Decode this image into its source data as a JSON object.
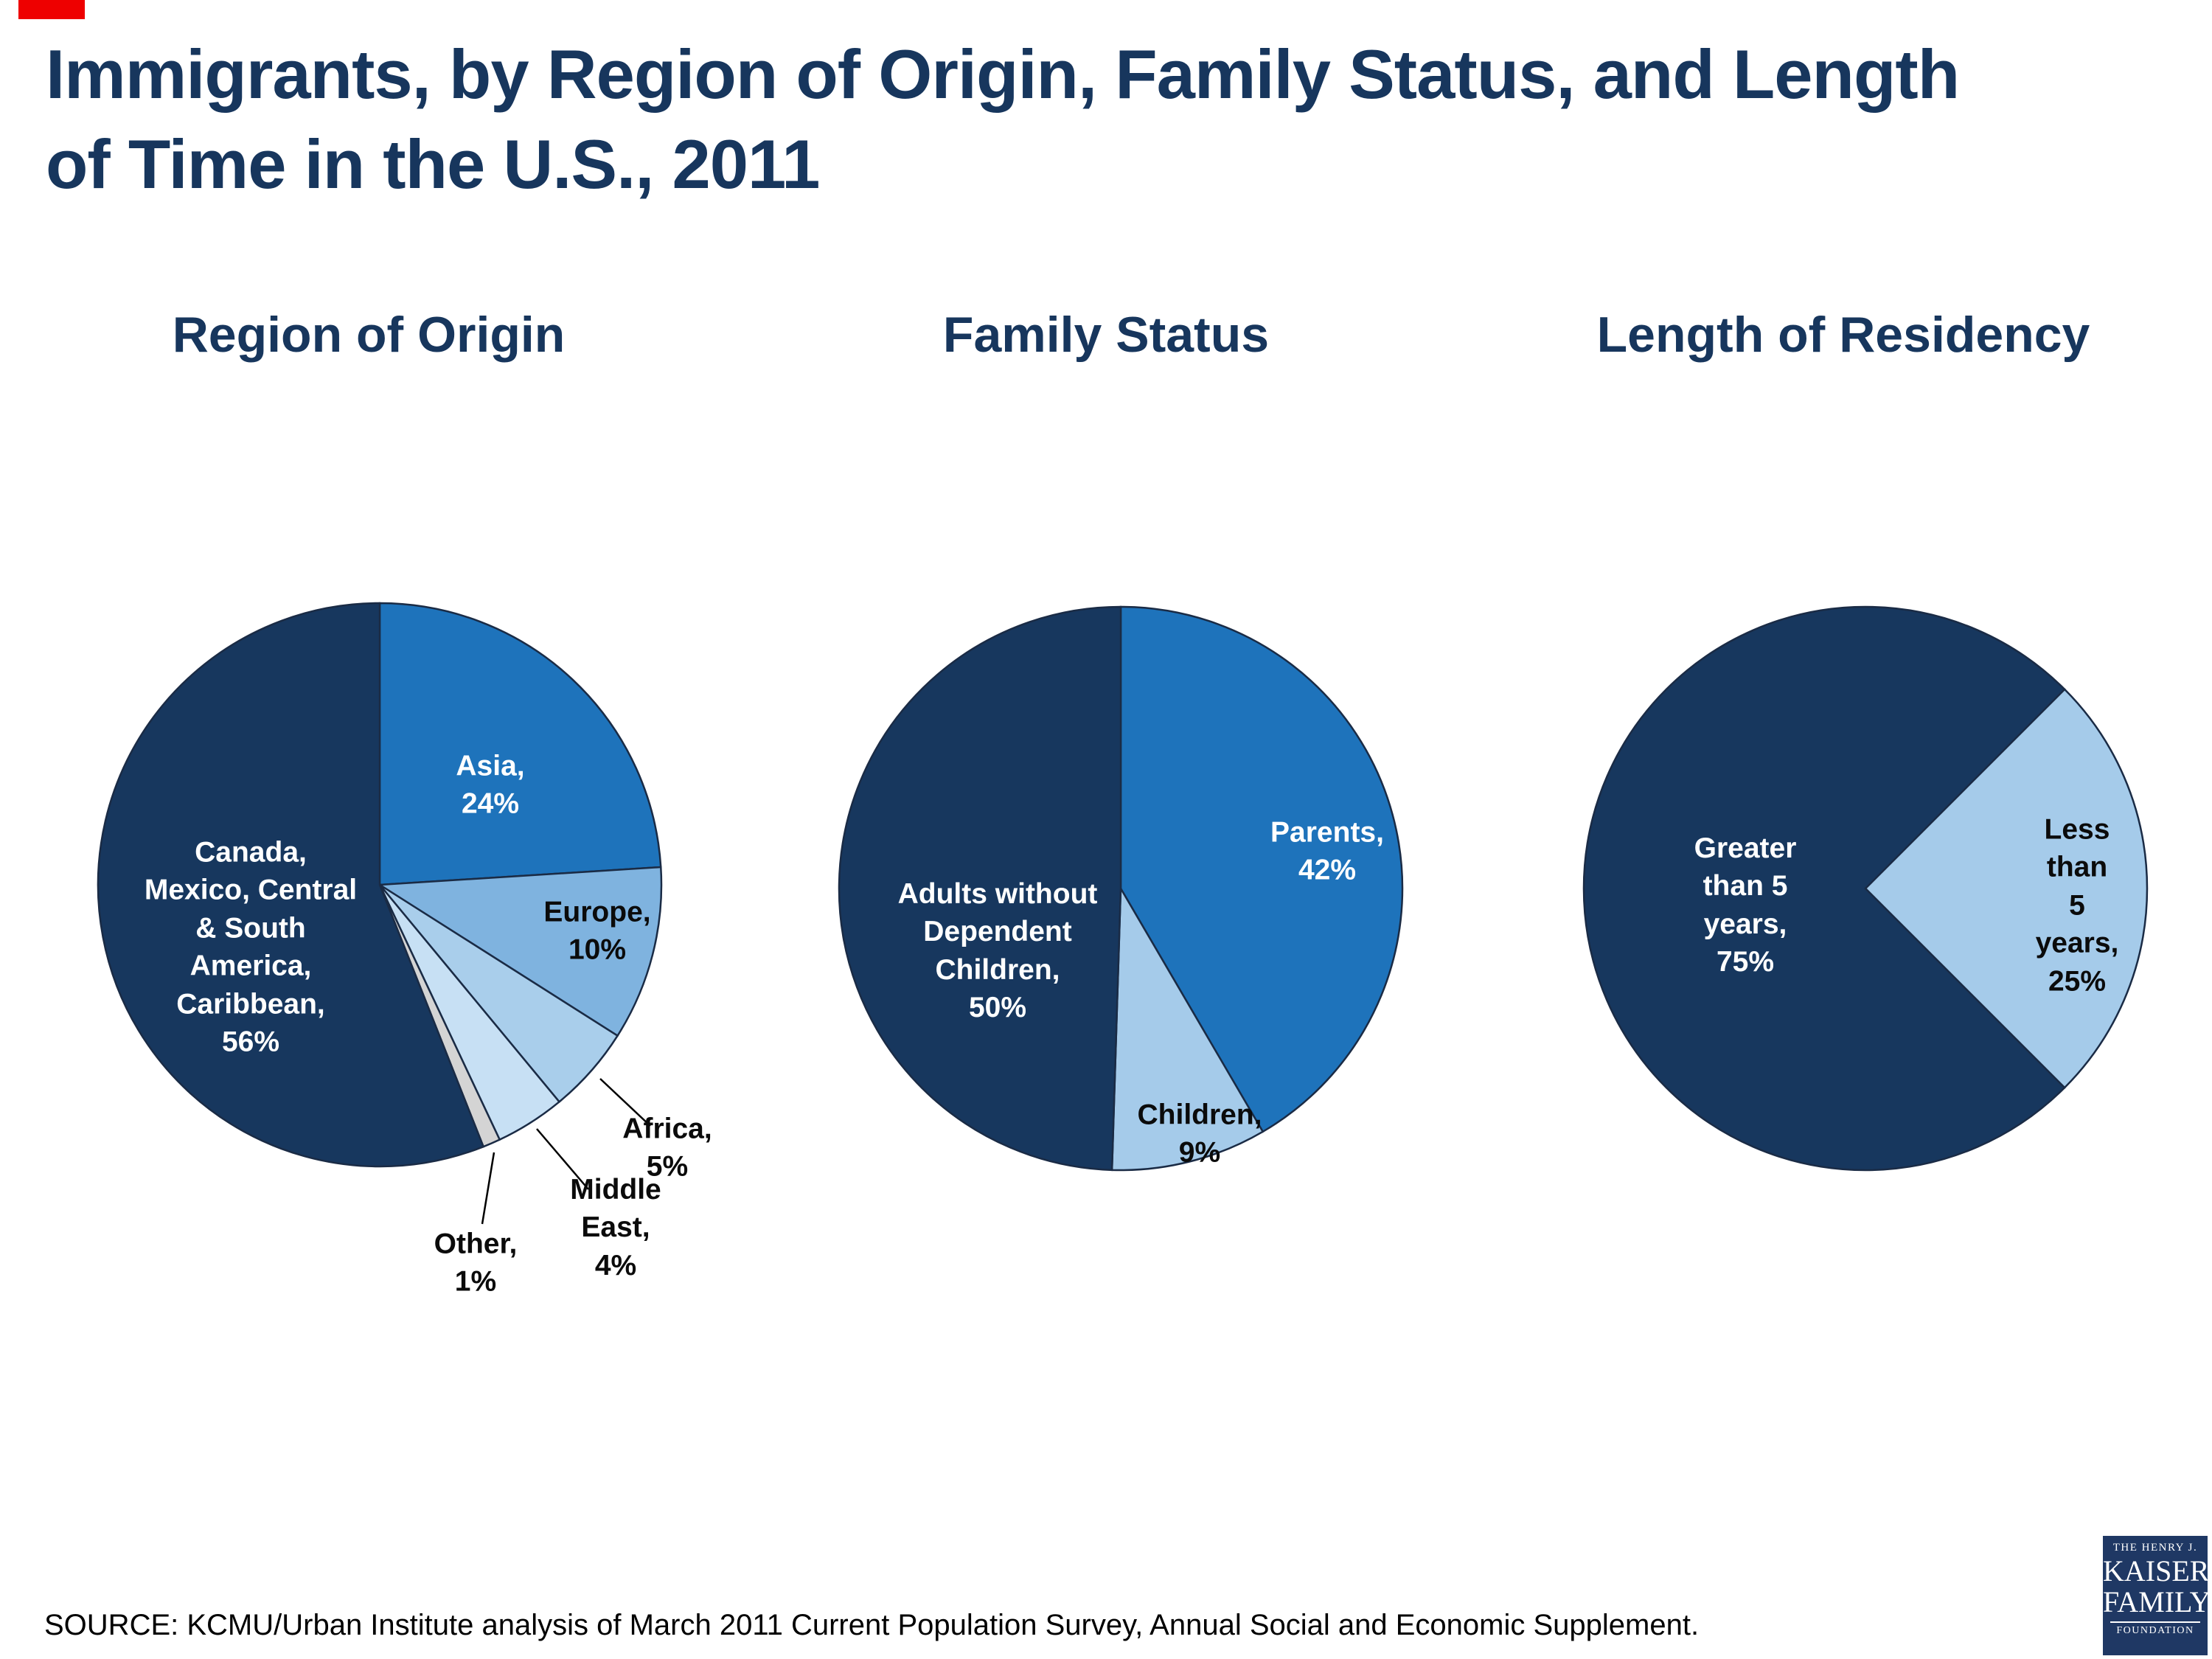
{
  "page": {
    "title": "Immigrants, by Region of Origin, Family Status, and Length\nof Time in the U.S., 2011",
    "source": "SOURCE: KCMU/Urban Institute analysis of March 2011 Current Population Survey, Annual Social and Economic Supplement."
  },
  "logo": {
    "line1": "THE HENRY J.",
    "line2": "KAISER",
    "line3": "FAMILY",
    "line4": "FOUNDATION"
  },
  "colors": {
    "navy": "#17375e",
    "medium_blue": "#1e73bb",
    "title_navy": "#17365d",
    "outline": "#1a2b45"
  },
  "chart_data": [
    {
      "type": "pie",
      "title": "Region of Origin",
      "start_angle_deg": 0,
      "legend": "none",
      "slices": [
        {
          "label": "Asia",
          "value": 24,
          "color": "#1e73bb"
        },
        {
          "label": "Europe",
          "value": 10,
          "color": "#7fb3df"
        },
        {
          "label": "Africa",
          "value": 5,
          "color": "#a9ceeb"
        },
        {
          "label": "Middle East",
          "value": 4,
          "color": "#c7e0f4"
        },
        {
          "label": "Other",
          "value": 1,
          "color": "#d4d4d4"
        },
        {
          "label": "Canada, Mexico, Central & South America, Caribbean",
          "value": 56,
          "color": "#17375e"
        }
      ],
      "labels": {
        "asia": "Asia,\n24%",
        "canada": "Canada,\nMexico, Central\n& South\nAmerica,\nCaribbean,\n56%",
        "europe": "Europe,\n10%",
        "africa": "Africa,\n5%",
        "middle_east": "Middle\nEast, 4%",
        "other": "Other,\n1%"
      }
    },
    {
      "type": "pie",
      "title": "Family Status",
      "start_angle_deg": 0,
      "legend": "none",
      "slices": [
        {
          "label": "Parents",
          "value": 42,
          "color": "#1e73bb"
        },
        {
          "label": "Children",
          "value": 9,
          "color": "#a5cbea"
        },
        {
          "label": "Adults without Dependent Children",
          "value": 50,
          "color": "#17375e"
        }
      ],
      "labels": {
        "parents": "Parents,\n42%",
        "adults": "Adults without\nDependent\nChildren,\n50%",
        "children": "Children,\n9%"
      }
    },
    {
      "type": "pie",
      "title": "Length of Residency",
      "start_angle_deg": 45,
      "legend": "none",
      "slices": [
        {
          "label": "Less than 5 years",
          "value": 25,
          "color": "#a5cbea"
        },
        {
          "label": "Greater than 5 years",
          "value": 75,
          "color": "#17375e"
        }
      ],
      "labels": {
        "greater": "Greater\nthan 5\nyears,\n75%",
        "less": "Less\nthan 5\nyears,\n25%"
      }
    }
  ]
}
